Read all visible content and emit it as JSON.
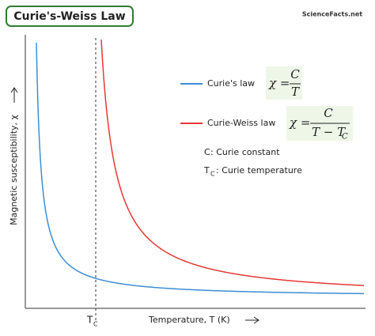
{
  "header": {
    "title": "Curie's-Weiss Law",
    "logo": "ScienceFacts.net"
  },
  "axes": {
    "y_label": "Magnetic susceptibility, χ",
    "x_label": "Temperature, T (K)",
    "x_tick": "T",
    "x_tick_sub": "C"
  },
  "legend": [
    {
      "label": "Curie's law",
      "color": "#3b8fd6",
      "formula": {
        "lhs": "χ =",
        "numerator": "C",
        "denominator": "T"
      }
    },
    {
      "label": "Curie-Weiss law",
      "color": "#e53935",
      "formula": {
        "lhs": "χ =",
        "numerator": "C",
        "denominator": "T − T",
        "denominator_sub": "C"
      }
    }
  ],
  "notes": [
    {
      "symbol": "C",
      "text": " : Curie constant"
    },
    {
      "symbol": "T",
      "sub": "C",
      "text": ": Curie temperature"
    }
  ]
}
